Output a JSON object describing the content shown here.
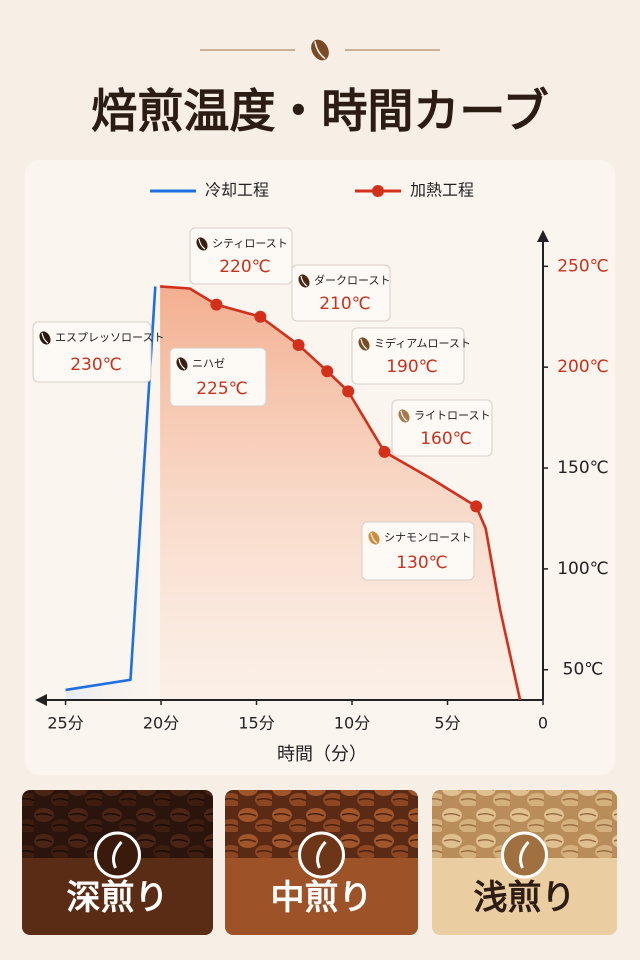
{
  "header": {
    "title": "焙煎温度・時間カーブ"
  },
  "chart_data": {
    "type": "line",
    "xlabel": "時間（分）",
    "xlim": [
      26.6,
      0
    ],
    "xticks": [
      {
        "value": 25,
        "label": "25分"
      },
      {
        "value": 20,
        "label": "20分"
      },
      {
        "value": 15,
        "label": "15分"
      },
      {
        "value": 10,
        "label": "10分"
      },
      {
        "value": 5,
        "label": "5分"
      },
      0
    ],
    "ylim": [
      35,
      268
    ],
    "yticks": [
      {
        "value": 50,
        "label": "50℃"
      },
      {
        "value": 100,
        "label": "100℃"
      },
      {
        "value": 150,
        "label": "150℃"
      },
      {
        "value": 200,
        "label": "200℃"
      },
      {
        "value": 250,
        "label": "250℃"
      }
    ],
    "legend": "top",
    "series": [
      {
        "name": "冷却工程",
        "color": "#1f6fe0",
        "x": [
          25.0,
          21.6,
          20.3
        ],
        "values": [
          40,
          45,
          240
        ]
      },
      {
        "name": "加熱工程",
        "color": "#d3301c",
        "x": [
          20.05,
          18.5,
          17.1,
          14.8,
          12.8,
          11.3,
          10.2,
          8.3,
          5.9,
          3.5,
          3.0,
          2.25,
          1.2
        ],
        "values": [
          240,
          239,
          231,
          225,
          211,
          198,
          188,
          158,
          145,
          131,
          120,
          80,
          35
        ],
        "markers": [
          false,
          false,
          true,
          true,
          true,
          true,
          true,
          true,
          false,
          true,
          false,
          false,
          false
        ]
      }
    ],
    "annotations": [
      {
        "name": "エスプレッソロースト",
        "label": "230℃"
      },
      {
        "name": "シティロースト",
        "label": "220℃"
      },
      {
        "name": "ニハゼ",
        "label": "225℃"
      },
      {
        "name": "ダークロースト",
        "label": "210℃"
      },
      {
        "name": "ミディアムロースト",
        "label": "190℃"
      },
      {
        "name": "ライトロースト",
        "label": "160℃"
      },
      {
        "name": "シナモンロースト",
        "label": "130℃"
      }
    ]
  },
  "roast_levels": [
    "深煎り",
    "中煎り",
    "浅煎り"
  ]
}
